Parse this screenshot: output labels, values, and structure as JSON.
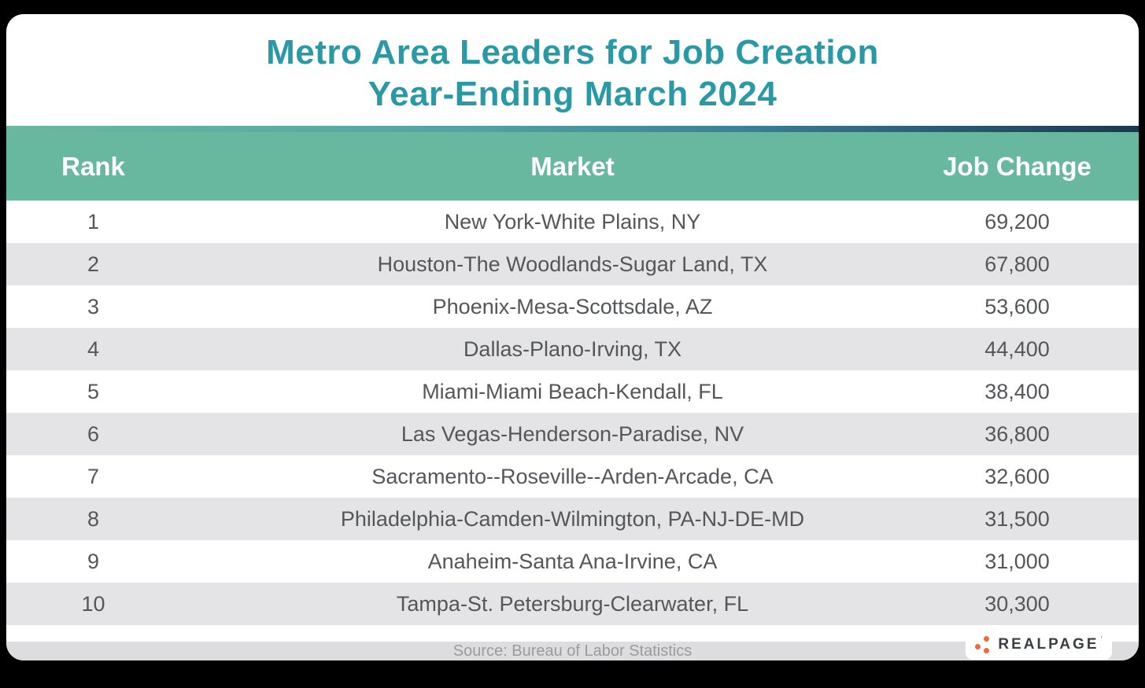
{
  "title": {
    "line1": "Metro Area Leaders for Job Creation",
    "line2": "Year-Ending March 2024"
  },
  "table": {
    "headers": {
      "rank": "Rank",
      "market": "Market",
      "job_change": "Job Change"
    },
    "rows": [
      {
        "rank": "1",
        "market": "New York-White Plains, NY",
        "job_change": "69,200"
      },
      {
        "rank": "2",
        "market": "Houston-The Woodlands-Sugar Land, TX",
        "job_change": "67,800"
      },
      {
        "rank": "3",
        "market": "Phoenix-Mesa-Scottsdale, AZ",
        "job_change": "53,600"
      },
      {
        "rank": "4",
        "market": "Dallas-Plano-Irving, TX",
        "job_change": "44,400"
      },
      {
        "rank": "5",
        "market": "Miami-Miami Beach-Kendall, FL",
        "job_change": "38,400"
      },
      {
        "rank": "6",
        "market": "Las Vegas-Henderson-Paradise, NV",
        "job_change": "36,800"
      },
      {
        "rank": "7",
        "market": "Sacramento--Roseville--Arden-Arcade, CA",
        "job_change": "32,600"
      },
      {
        "rank": "8",
        "market": "Philadelphia-Camden-Wilmington, PA-NJ-DE-MD",
        "job_change": "31,500"
      },
      {
        "rank": "9",
        "market": "Anaheim-Santa Ana-Irvine, CA",
        "job_change": "31,000"
      },
      {
        "rank": "10",
        "market": "Tampa-St. Petersburg-Clearwater, FL",
        "job_change": "30,300"
      }
    ]
  },
  "footer": {
    "source": "Source: Bureau of Labor Statistics"
  },
  "logo": {
    "text": "REALPAGE",
    "trademark": "’",
    "dot_color": "#E96A41"
  },
  "colors": {
    "title_teal": "#2999A6",
    "header_green": "#68B79F",
    "gradient_start": "#6CB7A0",
    "gradient_end": "#1C3850",
    "row_alt_gray": "#E4E4E6",
    "row_text": "#55565A",
    "footer_bar": "#DDDDDF",
    "footer_text": "#9B9B9B",
    "background": "#000000"
  },
  "chart_data": {
    "type": "table",
    "title": "Metro Area Leaders for Job Creation Year-Ending March 2024",
    "columns": [
      "Rank",
      "Market",
      "Job Change"
    ],
    "categories": [
      "New York-White Plains, NY",
      "Houston-The Woodlands-Sugar Land, TX",
      "Phoenix-Mesa-Scottsdale, AZ",
      "Dallas-Plano-Irving, TX",
      "Miami-Miami Beach-Kendall, FL",
      "Las Vegas-Henderson-Paradise, NV",
      "Sacramento--Roseville--Arden-Arcade, CA",
      "Philadelphia-Camden-Wilmington, PA-NJ-DE-MD",
      "Anaheim-Santa Ana-Irvine, CA",
      "Tampa-St. Petersburg-Clearwater, FL"
    ],
    "values": [
      69200,
      67800,
      53600,
      44400,
      38400,
      36800,
      32600,
      31500,
      31000,
      30300
    ],
    "source": "Source: Bureau of Labor Statistics"
  }
}
